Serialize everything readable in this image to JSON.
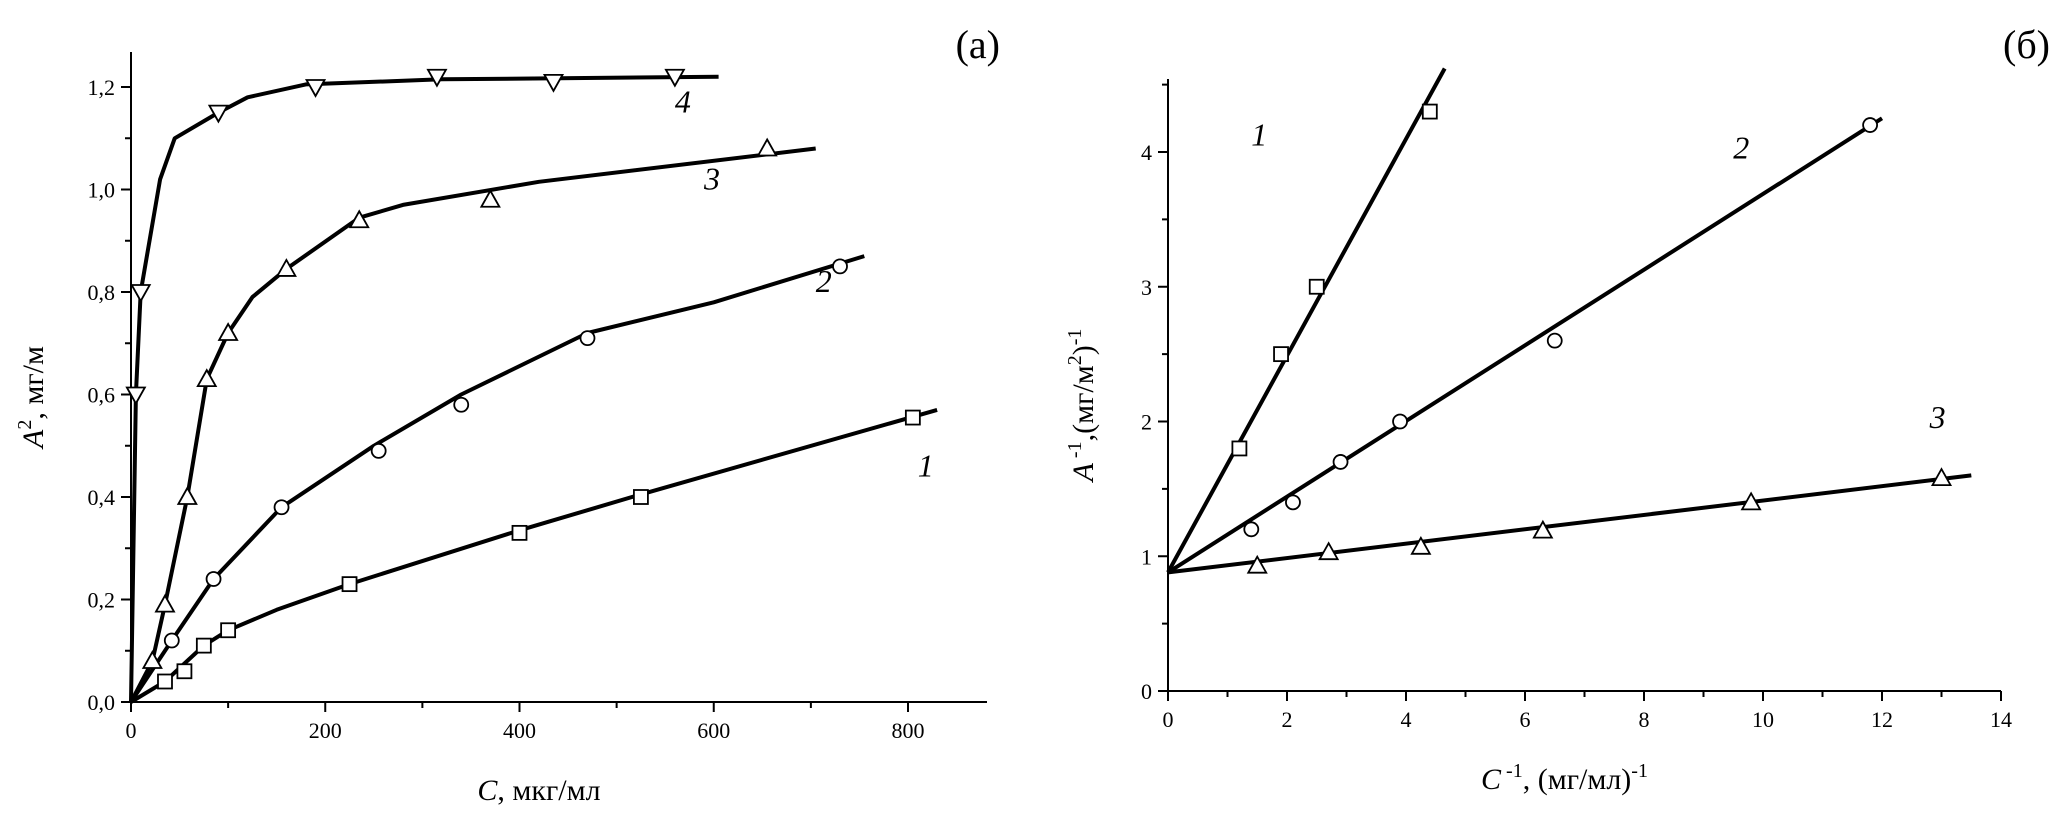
{
  "chart_data": [
    {
      "type": "line",
      "panel_label": "(a)",
      "xlabel_var": "C",
      "xlabel_unit": ", мкг/мл",
      "ylabel_var": "A",
      "ylabel_unit": ", мг/м",
      "ylabel_sup": "2",
      "xlim": [
        0,
        880
      ],
      "ylim": [
        0,
        1.27
      ],
      "xticks": [
        0,
        200,
        400,
        600,
        800
      ],
      "xtick_labels": [
        "0",
        "200",
        "400",
        "600",
        "800"
      ],
      "yticks": [
        0,
        0.2,
        0.4,
        0.6,
        0.8,
        1.0,
        1.2
      ],
      "ytick_labels": [
        "0,0",
        "0,2",
        "0,4",
        "0,6",
        "0,8",
        "1,0",
        "1,2"
      ],
      "xminor": 100,
      "yminor": 0.1,
      "grid": false,
      "series": [
        {
          "name": "1",
          "marker": "square",
          "x": [
            35,
            55,
            75,
            100,
            225,
            400,
            525,
            805
          ],
          "y": [
            0.04,
            0.06,
            0.11,
            0.14,
            0.23,
            0.33,
            0.4,
            0.555
          ],
          "curve_x": [
            0,
            35,
            75,
            100,
            150,
            225,
            400,
            525,
            830
          ],
          "curve_y": [
            0,
            0.04,
            0.11,
            0.14,
            0.18,
            0.23,
            0.335,
            0.405,
            0.57
          ],
          "label_at": [
            810,
            0.44
          ]
        },
        {
          "name": "2",
          "marker": "circle",
          "x": [
            42,
            85,
            155,
            255,
            340,
            470,
            730
          ],
          "y": [
            0.12,
            0.24,
            0.38,
            0.49,
            0.58,
            0.71,
            0.85
          ],
          "curve_x": [
            0,
            42,
            85,
            155,
            250,
            340,
            470,
            600,
            755
          ],
          "curve_y": [
            0,
            0.12,
            0.24,
            0.38,
            0.5,
            0.6,
            0.72,
            0.78,
            0.87
          ],
          "label_at": [
            705,
            0.8
          ]
        },
        {
          "name": "3",
          "marker": "triangle-up",
          "x": [
            22,
            35,
            58,
            78,
            100,
            160,
            235,
            370,
            655
          ],
          "y": [
            0.08,
            0.19,
            0.4,
            0.63,
            0.72,
            0.845,
            0.94,
            0.98,
            1.08
          ],
          "curve_x": [
            0,
            22,
            35,
            58,
            78,
            100,
            125,
            160,
            235,
            280,
            420,
            705
          ],
          "curve_y": [
            0,
            0.08,
            0.19,
            0.4,
            0.63,
            0.72,
            0.79,
            0.845,
            0.945,
            0.97,
            1.015,
            1.08
          ],
          "label_at": [
            590,
            1.0
          ]
        },
        {
          "name": "4",
          "marker": "triangle-down",
          "x": [
            5,
            10,
            90,
            190,
            315,
            435,
            560
          ],
          "y": [
            0.6,
            0.8,
            1.15,
            1.2,
            1.22,
            1.21,
            1.22
          ],
          "curve_x": [
            0,
            5,
            10,
            30,
            45,
            90,
            120,
            180,
            320,
            605
          ],
          "curve_y": [
            0,
            0.6,
            0.8,
            1.02,
            1.1,
            1.15,
            1.18,
            1.205,
            1.215,
            1.22
          ],
          "label_at": [
            560,
            1.15
          ]
        }
      ]
    },
    {
      "type": "line",
      "panel_label": "(б)",
      "xlabel_var": "C",
      "xlabel_sup": " -1",
      "xlabel_unit": ", (мг/мл)",
      "xlabel_sup2": "-1",
      "ylabel_var": "A",
      "ylabel_sup": " -1",
      "ylabel_unit": ",(мг/м",
      "ylabel_sup2": "2",
      "ylabel_unit2": ")",
      "ylabel_sup3": "-1",
      "xlim": [
        0,
        14
      ],
      "ylim": [
        0,
        4.7
      ],
      "xticks": [
        0,
        2,
        4,
        6,
        8,
        10,
        12,
        14
      ],
      "xtick_labels": [
        "0",
        "2",
        "4",
        "6",
        "8",
        "10",
        "12",
        "14"
      ],
      "yticks": [
        0,
        1,
        2,
        3,
        4
      ],
      "ytick_labels": [
        "0",
        "1",
        "2",
        "3",
        "4"
      ],
      "xminor": 1,
      "yminor": 0.5,
      "grid": false,
      "series": [
        {
          "name": "1",
          "marker": "square",
          "x": [
            1.2,
            1.9,
            2.5,
            4.4
          ],
          "y": [
            1.8,
            2.5,
            3.0,
            4.3
          ],
          "curve_x": [
            0,
            4.65
          ],
          "curve_y": [
            0.88,
            4.62
          ],
          "label_at": [
            1.4,
            4.05
          ]
        },
        {
          "name": "2",
          "marker": "circle",
          "x": [
            1.4,
            2.1,
            2.9,
            3.9,
            6.5,
            11.8
          ],
          "y": [
            1.2,
            1.4,
            1.7,
            2.0,
            2.6,
            4.2
          ],
          "curve_x": [
            0,
            12.0
          ],
          "curve_y": [
            0.88,
            4.25
          ],
          "label_at": [
            9.5,
            3.95
          ]
        },
        {
          "name": "3",
          "marker": "triangle-up",
          "x": [
            1.5,
            2.7,
            4.25,
            6.3,
            9.8,
            13.0
          ],
          "y": [
            0.93,
            1.03,
            1.07,
            1.19,
            1.4,
            1.58
          ],
          "curve_x": [
            0,
            13.5
          ],
          "curve_y": [
            0.88,
            1.6
          ],
          "label_at": [
            12.8,
            1.95
          ]
        }
      ]
    }
  ]
}
